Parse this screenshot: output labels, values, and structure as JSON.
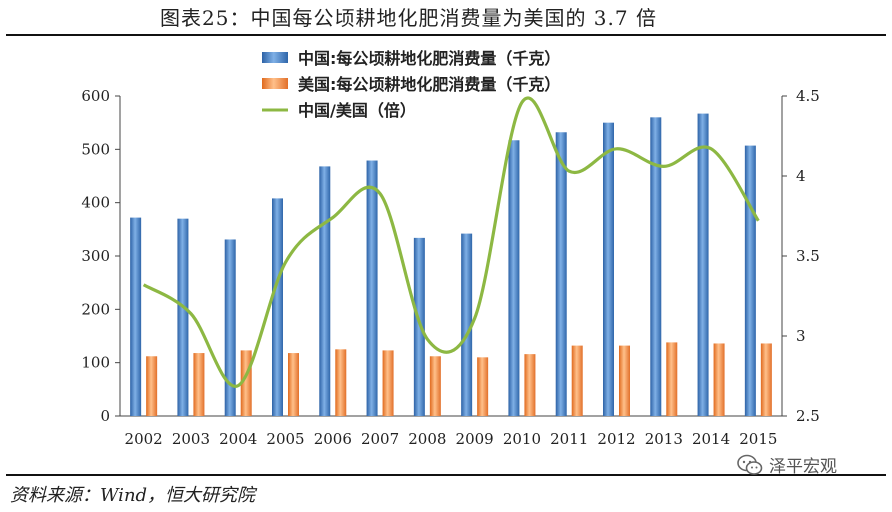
{
  "header": {
    "title": "图表25：中国每公顷耕地化肥消费量为美国的 3.7 倍"
  },
  "footer": {
    "source": "资料来源：Wind，恒大研究院",
    "watermark": "泽平宏观"
  },
  "chart_data": {
    "type": "bar",
    "categories": [
      "2002",
      "2003",
      "2004",
      "2005",
      "2006",
      "2007",
      "2008",
      "2009",
      "2010",
      "2011",
      "2012",
      "2013",
      "2014",
      "2015"
    ],
    "series": [
      {
        "name": "中国:每公顷耕地化肥消费量（千克）",
        "type": "bar",
        "axis": "left",
        "color": "#3f7fc4",
        "values": [
          372,
          370,
          331,
          408,
          468,
          479,
          334,
          342,
          517,
          532,
          550,
          560,
          567,
          507
        ]
      },
      {
        "name": "美国:每公顷耕地化肥消费量（千克）",
        "type": "bar",
        "axis": "left",
        "color": "#ef8a3c",
        "values": [
          112,
          118,
          123,
          118,
          125,
          123,
          112,
          110,
          116,
          132,
          132,
          138,
          136,
          136
        ]
      },
      {
        "name": "中国/美国（倍）",
        "type": "line",
        "axis": "right",
        "color": "#8db843",
        "values": [
          3.32,
          3.14,
          2.69,
          3.46,
          3.74,
          3.89,
          2.98,
          3.11,
          4.46,
          4.03,
          4.17,
          4.06,
          4.17,
          3.72
        ]
      }
    ],
    "y_left": {
      "lim": [
        0,
        600
      ],
      "ticks": [
        "0",
        "100",
        "200",
        "300",
        "400",
        "500",
        "600"
      ]
    },
    "y_right": {
      "lim": [
        2.5,
        4.5
      ],
      "ticks": [
        "2.5",
        "3",
        "3.5",
        "4",
        "4.5"
      ]
    },
    "legend_position": "top-center",
    "grid": false
  }
}
